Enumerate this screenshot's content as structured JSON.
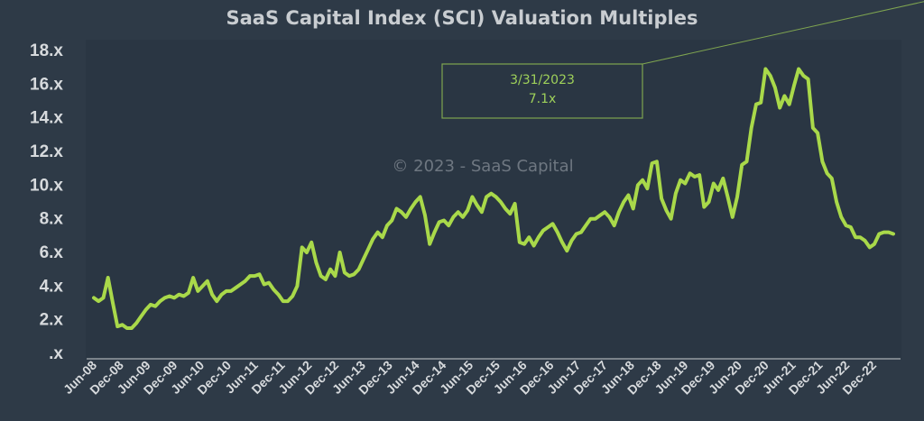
{
  "colors": {
    "background": "#2e3a47",
    "plot_background": "#2a3643",
    "line": "#a9d94a",
    "axis": "#c9cdd1",
    "callout": "#7fa550",
    "watermark": "#6e7781"
  },
  "chart_data": {
    "type": "line",
    "title": "SaaS Capital Index (SCI) Valuation Multiples",
    "xlabel": "",
    "ylabel": "",
    "ylim": [
      0,
      18
    ],
    "yticks": [
      0,
      2,
      4,
      6,
      8,
      10,
      12,
      14,
      16,
      18
    ],
    "ytick_labels": [
      ".x",
      "2.x",
      "4.x",
      "6.x",
      "8.x",
      "10.x",
      "12.x",
      "14.x",
      "16.x",
      "18.x"
    ],
    "xtick_labels": [
      "Jun-08",
      "Dec-08",
      "Jun-09",
      "Dec-09",
      "Jun-10",
      "Dec-10",
      "Jun-11",
      "Dec-11",
      "Jun-12",
      "Dec-12",
      "Jun-13",
      "Dec-13",
      "Jun-14",
      "Dec-14",
      "Jun-15",
      "Dec-15",
      "Jun-16",
      "Dec-16",
      "Jun-17",
      "Dec-17",
      "Jun-18",
      "Dec-18",
      "Jun-19",
      "Dec-19",
      "Jun-20",
      "Dec-20",
      "Jun-21",
      "Dec-21",
      "Jun-22",
      "Dec-22"
    ],
    "grid": false,
    "watermark": "© 2023 - SaaS Capital",
    "annotation": {
      "date": "3/31/2023",
      "value_label": "7.1x",
      "point_index": 177
    },
    "series": [
      {
        "name": "SCI",
        "values": [
          3.3,
          3.1,
          3.3,
          4.5,
          3.0,
          1.6,
          1.7,
          1.5,
          1.5,
          1.8,
          2.2,
          2.6,
          2.9,
          2.8,
          3.1,
          3.3,
          3.4,
          3.3,
          3.5,
          3.4,
          3.6,
          4.5,
          3.7,
          4.0,
          4.3,
          3.5,
          3.1,
          3.5,
          3.7,
          3.7,
          3.9,
          4.1,
          4.3,
          4.6,
          4.6,
          4.7,
          4.1,
          4.2,
          3.8,
          3.5,
          3.1,
          3.1,
          3.4,
          4.0,
          6.3,
          6.0,
          6.6,
          5.4,
          4.6,
          4.4,
          5.0,
          4.6,
          6.0,
          4.8,
          4.6,
          4.7,
          5.0,
          5.6,
          6.2,
          6.8,
          7.2,
          6.9,
          7.6,
          7.9,
          8.6,
          8.4,
          8.1,
          8.6,
          9.0,
          9.3,
          8.2,
          6.5,
          7.2,
          7.8,
          7.9,
          7.6,
          8.1,
          8.4,
          8.1,
          8.5,
          9.3,
          8.8,
          8.4,
          9.3,
          9.5,
          9.3,
          9.0,
          8.6,
          8.3,
          8.9,
          6.6,
          6.5,
          6.9,
          6.4,
          6.9,
          7.3,
          7.5,
          7.7,
          7.2,
          6.6,
          6.1,
          6.7,
          7.1,
          7.2,
          7.6,
          8.0,
          8.0,
          8.2,
          8.4,
          8.1,
          7.6,
          8.4,
          9.0,
          9.4,
          8.6,
          10.0,
          10.3,
          9.8,
          11.3,
          11.4,
          9.2,
          8.5,
          8.0,
          9.5,
          10.3,
          10.1,
          10.7,
          10.5,
          10.6,
          8.7,
          9.0,
          10.1,
          9.7,
          10.4,
          9.3,
          8.1,
          9.3,
          11.2,
          11.4,
          13.4,
          14.8,
          14.9,
          16.9,
          16.5,
          15.8,
          14.6,
          15.3,
          14.8,
          15.9,
          16.9,
          16.5,
          16.3,
          13.4,
          13.1,
          11.4,
          10.7,
          10.4,
          9.0,
          8.1,
          7.6,
          7.5,
          6.9,
          6.9,
          6.7,
          6.3,
          6.5,
          7.1,
          7.2,
          7.2,
          7.1
        ]
      }
    ]
  }
}
